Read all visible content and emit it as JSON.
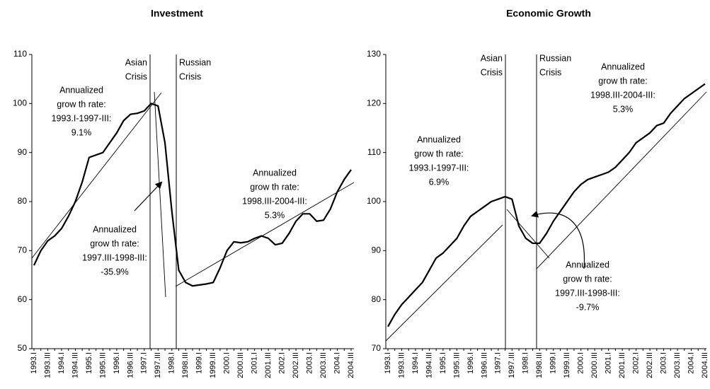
{
  "chart_data": [
    {
      "type": "line",
      "title": "Investment",
      "color": "#000000",
      "categories": [
        "1993.I",
        null,
        "1993.III",
        null,
        "1994.I",
        null,
        "1994.III",
        null,
        "1995.I",
        null,
        "1995.III",
        null,
        "1996.I",
        null,
        "1996.III",
        null,
        "1997.I",
        null,
        "1997.III",
        null,
        "1998.I",
        null,
        "1998.III",
        null,
        "1999.I",
        null,
        "1999.III",
        null,
        "2000.I",
        null,
        "2000.III",
        null,
        "2001.I",
        null,
        "2001.III",
        null,
        "2002.I",
        null,
        "2002.III",
        null,
        "2003.I",
        null,
        "2003.III",
        null,
        "2004.I",
        null,
        "2004.III"
      ],
      "values": [
        67,
        70,
        72,
        73,
        74.5,
        77,
        80,
        84,
        89,
        89.5,
        90,
        92,
        94,
        96.5,
        97.8,
        98,
        98.5,
        100,
        99.5,
        92,
        78,
        66,
        63.5,
        62.8,
        63,
        63.2,
        63.5,
        66.5,
        70,
        71.8,
        71.6,
        71.8,
        72.5,
        73,
        72.5,
        71.2,
        71.5,
        73.5,
        76,
        77.5,
        77.5,
        76,
        76.2,
        78.5,
        82,
        84.5,
        86.5
      ],
      "ylim": [
        50,
        110
      ],
      "yticks": [
        50,
        60,
        70,
        80,
        90,
        100,
        110
      ],
      "annotations": [
        {
          "lines": [
            "Asian",
            "Crisis"
          ]
        },
        {
          "lines": [
            "Russian",
            "Crisis"
          ]
        },
        {
          "lines": [
            "Annualized",
            "grow th rate:",
            "1993.I-1997-III:",
            "9.1%"
          ]
        },
        {
          "lines": [
            "Annualized",
            "grow th rate:",
            "1998.III-2004-III:",
            "5.3%"
          ]
        },
        {
          "lines": [
            "Annualized",
            "grow th rate:",
            "1997.III-1998-III:",
            "-35.9%"
          ]
        }
      ]
    },
    {
      "type": "line",
      "title": "Economic Growth",
      "color": "#000000",
      "categories": [
        "1993.I",
        null,
        "1993.III",
        null,
        "1994.I",
        null,
        "1994.III",
        null,
        "1995.I",
        null,
        "1995.III",
        null,
        "1996.I",
        null,
        "1996.III",
        null,
        "1997.I",
        null,
        "1997.III",
        null,
        "1998.I",
        null,
        "1998.III",
        null,
        "1999.I",
        null,
        "1999.III",
        null,
        "2000.I",
        null,
        "2000.III",
        null,
        "2001.I",
        null,
        "2001.III",
        null,
        "2002.I",
        null,
        "2002.III",
        null,
        "2003.I",
        null,
        "2003.III",
        null,
        "2004.I",
        null,
        "2004.III"
      ],
      "values": [
        74.5,
        77,
        79,
        80.5,
        82,
        83.5,
        86,
        88.5,
        89.5,
        91,
        92.5,
        95,
        97,
        98,
        99,
        100,
        100.5,
        101,
        100.5,
        95,
        92.5,
        91.5,
        91.5,
        93.5,
        96,
        98,
        100,
        102,
        103.5,
        104.5,
        105,
        105.5,
        106,
        107,
        108.5,
        110,
        112,
        113,
        114,
        115.5,
        116,
        118,
        119.5,
        121,
        122,
        123,
        124
      ],
      "ylim": [
        70,
        130
      ],
      "yticks": [
        70,
        80,
        90,
        100,
        110,
        120,
        130
      ],
      "annotations": [
        {
          "lines": [
            "Asian",
            "Crisis"
          ]
        },
        {
          "lines": [
            "Russian",
            "Crisis"
          ]
        },
        {
          "lines": [
            "Annualized",
            "grow th rate:",
            "1998.III-2004-III:",
            "5.3%"
          ]
        },
        {
          "lines": [
            "Annualized",
            "grow th rate:",
            "1993.I-1997-III:",
            "6.9%"
          ]
        },
        {
          "lines": [
            "Annualized",
            "grow th rate:",
            "1997.III-1998-III:",
            "-9.7%"
          ]
        }
      ]
    }
  ]
}
